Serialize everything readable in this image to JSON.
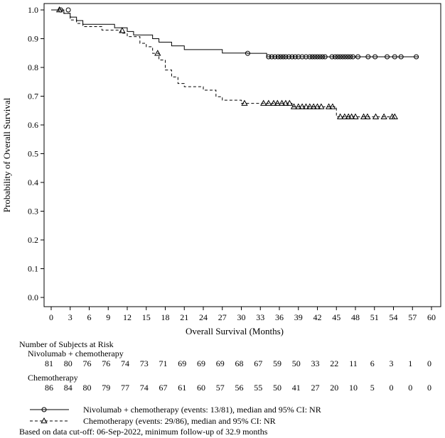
{
  "chart_data": {
    "type": "line",
    "subtype": "kaplan-meier",
    "xlabel": "Overall Survival (Months)",
    "ylabel": "Probability of Overall Survival",
    "xlim": [
      0,
      60
    ],
    "ylim": [
      0.0,
      1.0
    ],
    "xticks": [
      0,
      3,
      6,
      9,
      12,
      15,
      18,
      21,
      24,
      27,
      30,
      33,
      36,
      39,
      42,
      45,
      48,
      51,
      54,
      57,
      60
    ],
    "yticks": [
      0.0,
      0.1,
      0.2,
      0.3,
      0.4,
      0.5,
      0.6,
      0.7,
      0.8,
      0.9,
      1.0
    ],
    "ytick_labels": [
      "0.0",
      "0.1",
      "0.2",
      "0.3",
      "0.4",
      "0.5",
      "0.6",
      "0.7",
      "0.8",
      "0.9",
      "1.0"
    ],
    "grid": false,
    "series": [
      {
        "name": "Nivolumab + chemotherapy",
        "line_style": "solid",
        "censor_marker": "circle",
        "steps": [
          [
            0,
            1.0
          ],
          [
            2,
            0.988
          ],
          [
            3,
            0.975
          ],
          [
            4,
            0.963
          ],
          [
            5,
            0.95
          ],
          [
            10,
            0.938
          ],
          [
            12,
            0.925
          ],
          [
            13,
            0.913
          ],
          [
            16,
            0.9
          ],
          [
            17,
            0.888
          ],
          [
            19,
            0.875
          ],
          [
            21,
            0.862
          ],
          [
            27,
            0.85
          ],
          [
            31,
            0.849
          ],
          [
            34,
            0.837
          ],
          [
            58,
            0.837
          ]
        ],
        "censored": [
          [
            1.5,
            1.0
          ],
          [
            2.7,
            1.0
          ],
          [
            31,
            0.849
          ],
          [
            34.3,
            0.837
          ],
          [
            34.8,
            0.837
          ],
          [
            35.3,
            0.837
          ],
          [
            35.8,
            0.837
          ],
          [
            36.2,
            0.837
          ],
          [
            36.6,
            0.837
          ],
          [
            37.0,
            0.837
          ],
          [
            37.5,
            0.837
          ],
          [
            38.0,
            0.837
          ],
          [
            38.5,
            0.837
          ],
          [
            39.0,
            0.837
          ],
          [
            39.6,
            0.837
          ],
          [
            40.2,
            0.837
          ],
          [
            40.8,
            0.837
          ],
          [
            41.2,
            0.837
          ],
          [
            41.6,
            0.837
          ],
          [
            42.0,
            0.837
          ],
          [
            42.4,
            0.837
          ],
          [
            42.8,
            0.837
          ],
          [
            43.2,
            0.837
          ],
          [
            44.3,
            0.837
          ],
          [
            44.8,
            0.837
          ],
          [
            45.2,
            0.837
          ],
          [
            45.6,
            0.837
          ],
          [
            46.0,
            0.837
          ],
          [
            46.4,
            0.837
          ],
          [
            46.8,
            0.837
          ],
          [
            47.2,
            0.837
          ],
          [
            47.6,
            0.837
          ],
          [
            48.4,
            0.837
          ],
          [
            50.0,
            0.837
          ],
          [
            51.1,
            0.837
          ],
          [
            53.0,
            0.837
          ],
          [
            54.2,
            0.837
          ],
          [
            55.2,
            0.837
          ],
          [
            57.6,
            0.837
          ]
        ]
      },
      {
        "name": "Chemotherapy",
        "line_style": "dashed",
        "censor_marker": "triangle",
        "steps": [
          [
            0,
            1.0
          ],
          [
            2,
            0.988
          ],
          [
            3,
            0.965
          ],
          [
            4,
            0.953
          ],
          [
            5,
            0.942
          ],
          [
            8,
            0.93
          ],
          [
            11,
            0.919
          ],
          [
            12,
            0.907
          ],
          [
            14,
            0.884
          ],
          [
            15,
            0.872
          ],
          [
            16,
            0.849
          ],
          [
            17,
            0.826
          ],
          [
            18,
            0.791
          ],
          [
            19,
            0.767
          ],
          [
            20,
            0.744
          ],
          [
            21,
            0.733
          ],
          [
            24,
            0.721
          ],
          [
            26,
            0.698
          ],
          [
            27,
            0.686
          ],
          [
            30,
            0.675
          ],
          [
            38,
            0.663
          ],
          [
            45,
            0.628
          ],
          [
            54,
            0.628
          ]
        ],
        "censored": [
          [
            1.3,
            1.0
          ],
          [
            11.2,
            0.928
          ],
          [
            16.8,
            0.849
          ],
          [
            30.5,
            0.675
          ],
          [
            33.5,
            0.675
          ],
          [
            34.3,
            0.675
          ],
          [
            35.1,
            0.675
          ],
          [
            35.7,
            0.675
          ],
          [
            36.4,
            0.675
          ],
          [
            37.0,
            0.675
          ],
          [
            37.6,
            0.675
          ],
          [
            38.3,
            0.663
          ],
          [
            39.0,
            0.663
          ],
          [
            39.6,
            0.663
          ],
          [
            40.2,
            0.663
          ],
          [
            40.8,
            0.663
          ],
          [
            41.4,
            0.663
          ],
          [
            42.0,
            0.663
          ],
          [
            42.6,
            0.663
          ],
          [
            43.8,
            0.663
          ],
          [
            44.4,
            0.663
          ],
          [
            45.6,
            0.628
          ],
          [
            46.3,
            0.628
          ],
          [
            46.9,
            0.628
          ],
          [
            47.4,
            0.628
          ],
          [
            48.0,
            0.628
          ],
          [
            49.3,
            0.628
          ],
          [
            49.9,
            0.628
          ],
          [
            51.2,
            0.628
          ],
          [
            52.5,
            0.628
          ],
          [
            53.8,
            0.628
          ],
          [
            54.2,
            0.628
          ]
        ]
      }
    ]
  },
  "risk_table": {
    "title": "Number of Subjects at Risk",
    "groups": [
      {
        "name": "Nivolumab + chemotherapy",
        "counts": [
          "81",
          "80",
          "76",
          "76",
          "74",
          "73",
          "71",
          "69",
          "69",
          "69",
          "68",
          "67",
          "59",
          "50",
          "33",
          "22",
          "11",
          "6",
          "3",
          "1",
          "0"
        ]
      },
      {
        "name": "Chemotherapy",
        "counts": [
          "86",
          "84",
          "80",
          "79",
          "77",
          "74",
          "67",
          "61",
          "60",
          "57",
          "56",
          "55",
          "50",
          "41",
          "27",
          "20",
          "10",
          "5",
          "0",
          "0",
          "0"
        ]
      }
    ]
  },
  "legend": {
    "items": [
      {
        "marker_style": "solid-circle",
        "label": "Nivolumab + chemotherapy (events: 13/81), median and 95% CI: NR"
      },
      {
        "marker_style": "dashed-triangle",
        "label": "Chemotherapy (events: 29/86), median and 95% CI: NR"
      }
    ]
  },
  "footnote": "Based on data cut-off: 06-Sep-2022, minimum follow-up of 32.9 months"
}
